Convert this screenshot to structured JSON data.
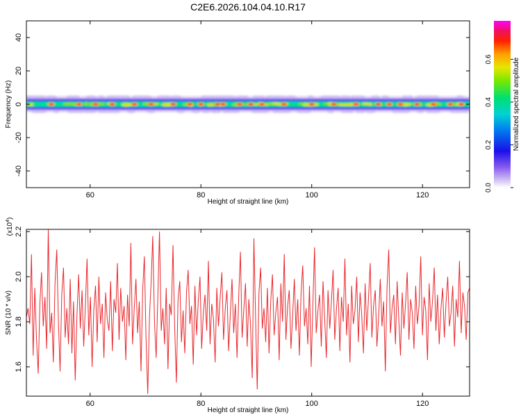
{
  "title": "C2E6.2026.104.04.10.R17",
  "chart_data": [
    {
      "type": "heatmap",
      "xlabel": "Height of straight line (km)",
      "ylabel": "Frequency (Hz)",
      "xlim": [
        48.5,
        128.5
      ],
      "ylim": [
        -50,
        50
      ],
      "xticks": [
        60,
        80,
        100,
        120
      ],
      "yticks": [
        -40,
        -20,
        0,
        20,
        40
      ],
      "band": {
        "center_hz": 0,
        "core_halfwidth_hz": 2,
        "full_halfwidth_hz": 5
      },
      "hotspots_km": [
        53,
        58,
        61,
        64,
        68,
        71,
        75,
        78,
        80,
        83,
        84,
        87,
        89,
        91,
        95,
        100,
        104,
        108,
        112,
        114,
        116,
        119,
        122,
        125,
        127
      ],
      "colorbar": {
        "label": "Normalized spectral amplitude",
        "range": [
          0,
          0.78
        ],
        "ticks": [
          "0.0",
          "0.2",
          "0.4",
          "0.6"
        ]
      }
    },
    {
      "type": "line",
      "xlabel": "Height of straight line (km)",
      "ylabel": "SNR (10 * v/v)",
      "y_multiplier": "(x10",
      "y_multiplier_exp": "4",
      "y_multiplier_close": ")",
      "xlim": [
        48.5,
        128.5
      ],
      "ylim": [
        1.47,
        2.21
      ],
      "xticks": [
        60,
        80,
        100,
        120
      ],
      "yticks": [
        "1.6",
        "1.8",
        "2.0",
        "2.2"
      ],
      "ytick_values": [
        1.6,
        1.8,
        2.0,
        2.2
      ],
      "color": "#e8252a",
      "x_range": [
        48.5,
        128.5
      ],
      "values": [
        1.82,
        1.86,
        1.79,
        2.1,
        1.65,
        1.95,
        1.72,
        1.57,
        1.88,
        2.02,
        1.78,
        1.91,
        1.68,
        2.21,
        1.75,
        1.84,
        1.62,
        1.97,
        2.12,
        1.8,
        1.58,
        1.92,
        2.04,
        1.73,
        1.86,
        1.7,
        1.99,
        1.66,
        1.89,
        1.54,
        1.83,
        2.01,
        1.77,
        1.94,
        1.69,
        1.87,
        2.08,
        1.74,
        1.91,
        1.6,
        1.85,
        1.96,
        1.71,
        2.0,
        1.79,
        1.88,
        1.64,
        1.93,
        1.81,
        1.76,
        1.98,
        1.67,
        1.9,
        1.84,
        2.06,
        1.72,
        1.95,
        1.8,
        1.87,
        1.63,
        1.92,
        1.78,
        2.15,
        1.7,
        1.86,
        1.99,
        1.75,
        1.89,
        1.58,
        1.94,
        2.09,
        1.73,
        1.48,
        1.82,
        1.97,
        2.18,
        1.8,
        1.64,
        1.91,
        2.2,
        1.76,
        1.86,
        1.7,
        1.95,
        1.59,
        1.88,
        1.83,
        2.14,
        1.77,
        1.53,
        1.9,
        1.98,
        1.71,
        1.85,
        1.66,
        1.93,
        2.03,
        1.79,
        1.87,
        1.61,
        1.96,
        1.74,
        1.89,
        2.0,
        1.68,
        1.84,
        1.92,
        1.76,
        2.07,
        1.7,
        1.88,
        1.81,
        1.62,
        1.95,
        1.78,
        1.91,
        2.02,
        1.72,
        1.86,
        1.94,
        1.67,
        1.83,
        1.99,
        1.75,
        1.88,
        1.64,
        1.92,
        2.11,
        1.73,
        1.85,
        1.97,
        1.69,
        1.9,
        1.79,
        1.55,
        2.17,
        1.82,
        1.5,
        1.93,
        2.04,
        1.77,
        1.86,
        1.71,
        1.95,
        1.66,
        1.89,
        2.01,
        1.74,
        1.84,
        1.91,
        1.63,
        1.97,
        1.8,
        2.1,
        1.72,
        1.87,
        1.94,
        1.68,
        1.83,
        1.99,
        1.76,
        1.9,
        1.65,
        1.93,
        2.05,
        1.78,
        1.86,
        1.7,
        1.96,
        1.6,
        1.88,
        2.13,
        1.75,
        1.85,
        1.92,
        1.69,
        1.98,
        1.81,
        1.64,
        1.94,
        1.77,
        1.89,
        2.03,
        1.72,
        1.86,
        1.95,
        1.67,
        1.91,
        1.8,
        2.08,
        1.74,
        1.88,
        1.62,
        1.96,
        1.79,
        1.85,
        2.0,
        1.71,
        1.93,
        1.83,
        1.66,
        1.97,
        1.76,
        1.9,
        2.06,
        1.73,
        1.87,
        1.94,
        1.69,
        1.82,
        1.99,
        1.78,
        1.89,
        1.58,
        1.95,
        2.12,
        1.75,
        1.86,
        1.92,
        1.7,
        1.98,
        1.81,
        1.65,
        1.93,
        1.77,
        1.88,
        2.02,
        1.72,
        1.9,
        1.84,
        1.68,
        1.96,
        1.79,
        1.87,
        2.09,
        1.74,
        1.91,
        1.85,
        1.63,
        1.97,
        1.8,
        1.89,
        2.04,
        1.76,
        1.92,
        1.7,
        1.86,
        1.95,
        1.73,
        1.88,
        2.0,
        1.78,
        1.84,
        1.96,
        1.69,
        1.9,
        1.82,
        2.07,
        1.75,
        1.93,
        1.87,
        1.72,
        1.93,
        1.95
      ]
    }
  ]
}
